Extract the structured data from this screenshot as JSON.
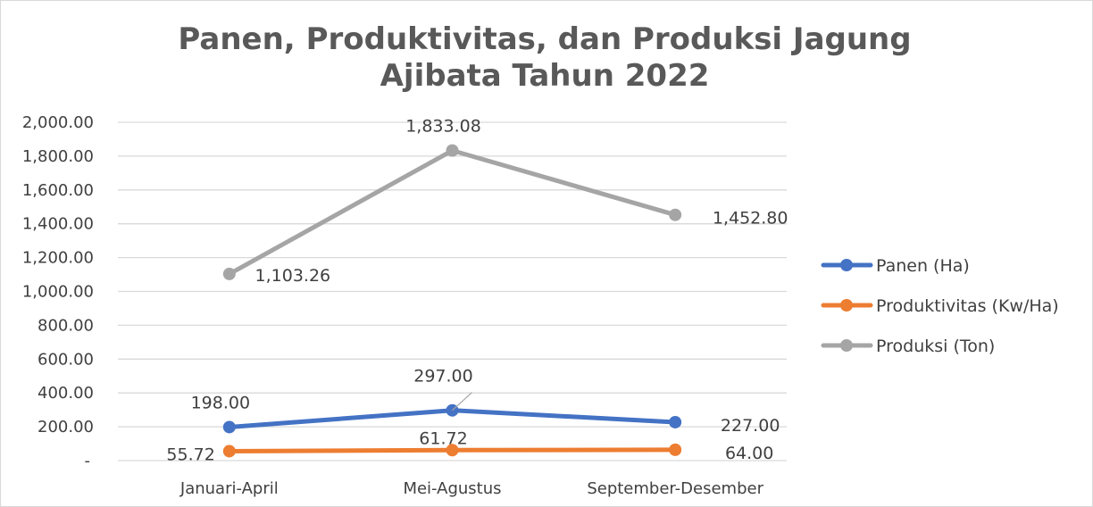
{
  "chart_data": {
    "type": "line",
    "title": "Panen, Produktivitas, dan Produksi Jagung Ajibata Tahun 2022",
    "title_lines": [
      "Panen, Produktivitas, dan Produksi Jagung",
      "Ajibata Tahun 2022"
    ],
    "categories": [
      "Januari-April",
      "Mei-Agustus",
      "September-Desember"
    ],
    "ylim": [
      0,
      2000
    ],
    "y_ticks": [
      0,
      200,
      400,
      600,
      800,
      1000,
      1200,
      1400,
      1600,
      1800,
      2000
    ],
    "y_tick_labels": [
      "-",
      "200.00",
      "400.00",
      "600.00",
      "800.00",
      "1,000.00",
      "1,200.00",
      "1,400.00",
      "1,600.00",
      "1,800.00",
      "2,000.00"
    ],
    "grid": "horizontal",
    "legend_position": "right",
    "series": [
      {
        "name": "Panen (Ha)",
        "color": "#4472c4",
        "values": [
          198,
          297,
          227
        ],
        "labels": [
          "198.00",
          "297.00",
          "227.00"
        ]
      },
      {
        "name": "Produktivitas (Kw/Ha)",
        "color": "#ed7d31",
        "values": [
          55.72,
          61.72,
          64
        ],
        "labels": [
          "55.72",
          "61.72",
          "64.00"
        ]
      },
      {
        "name": "Produksi (Ton)",
        "color": "#a5a5a5",
        "values": [
          1103.26,
          1833.08,
          1452.8
        ],
        "labels": [
          "1,103.26",
          "1,833.08",
          "1,452.80"
        ]
      }
    ]
  }
}
